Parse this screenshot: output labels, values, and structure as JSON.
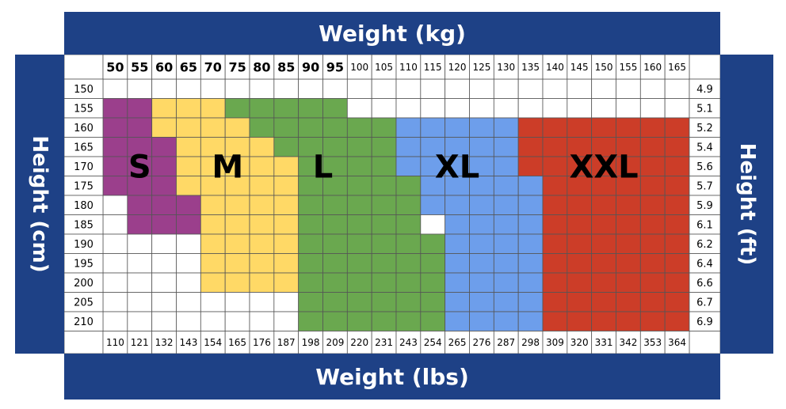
{
  "chart_data": {
    "type": "heatmap",
    "title": "Weight (kg)",
    "xlabel": "Weight (kg)",
    "xlabel_secondary": "Weight (lbs)",
    "ylabel": "Height (cm)",
    "ylabel_secondary": "Height (ft)",
    "weight_kg": [
      "50",
      "55",
      "60",
      "65",
      "70",
      "75",
      "80",
      "85",
      "90",
      "95",
      "100",
      "105",
      "110",
      "115",
      "120",
      "125",
      "130",
      "135",
      "140",
      "145",
      "150",
      "155",
      "160",
      "165"
    ],
    "weight_lbs": [
      "110",
      "121",
      "132",
      "143",
      "154",
      "165",
      "176",
      "187",
      "198",
      "209",
      "220",
      "231",
      "243",
      "254",
      "265",
      "276",
      "287",
      "298",
      "309",
      "320",
      "331",
      "342",
      "353",
      "364"
    ],
    "height_cm": [
      "150",
      "155",
      "160",
      "165",
      "170",
      "175",
      "180",
      "185",
      "190",
      "195",
      "200",
      "205",
      "210"
    ],
    "height_ft": [
      "4.9",
      "5.1",
      "5.2",
      "5.4",
      "5.6",
      "5.7",
      "5.9",
      "6.1",
      "6.2",
      "6.4",
      "6.6",
      "6.7",
      "6.9"
    ],
    "sizes": [
      {
        "name": "S",
        "color": "#9b3f8c",
        "text_color": "#000000",
        "cells": [
          [
            1,
            0
          ],
          [
            1,
            1
          ],
          [
            2,
            0
          ],
          [
            2,
            1
          ],
          [
            3,
            0
          ],
          [
            3,
            1
          ],
          [
            3,
            2
          ],
          [
            4,
            0
          ],
          [
            4,
            1
          ],
          [
            4,
            2
          ],
          [
            5,
            0
          ],
          [
            5,
            1
          ],
          [
            5,
            2
          ],
          [
            6,
            1
          ],
          [
            6,
            2
          ],
          [
            6,
            3
          ],
          [
            7,
            1
          ],
          [
            7,
            2
          ],
          [
            7,
            3
          ]
        ]
      },
      {
        "name": "M",
        "color": "#ffd966",
        "text_color": "#000000",
        "cells": [
          [
            1,
            2
          ],
          [
            1,
            3
          ],
          [
            1,
            4
          ],
          [
            2,
            2
          ],
          [
            2,
            3
          ],
          [
            2,
            4
          ],
          [
            2,
            5
          ],
          [
            3,
            3
          ],
          [
            3,
            4
          ],
          [
            3,
            5
          ],
          [
            3,
            6
          ],
          [
            4,
            3
          ],
          [
            4,
            4
          ],
          [
            4,
            5
          ],
          [
            4,
            6
          ],
          [
            4,
            7
          ],
          [
            5,
            3
          ],
          [
            5,
            4
          ],
          [
            5,
            5
          ],
          [
            5,
            6
          ],
          [
            5,
            7
          ],
          [
            6,
            4
          ],
          [
            6,
            5
          ],
          [
            6,
            6
          ],
          [
            6,
            7
          ],
          [
            7,
            4
          ],
          [
            7,
            5
          ],
          [
            7,
            6
          ],
          [
            7,
            7
          ],
          [
            8,
            4
          ],
          [
            8,
            5
          ],
          [
            8,
            6
          ],
          [
            8,
            7
          ],
          [
            9,
            4
          ],
          [
            9,
            5
          ],
          [
            9,
            6
          ],
          [
            9,
            7
          ],
          [
            10,
            4
          ],
          [
            10,
            5
          ],
          [
            10,
            6
          ],
          [
            10,
            7
          ]
        ]
      },
      {
        "name": "L",
        "color": "#6aa84f",
        "text_color": "#000000",
        "cells": [
          [
            1,
            5
          ],
          [
            1,
            6
          ],
          [
            1,
            7
          ],
          [
            1,
            8
          ],
          [
            1,
            9
          ],
          [
            2,
            6
          ],
          [
            2,
            7
          ],
          [
            2,
            8
          ],
          [
            2,
            9
          ],
          [
            2,
            10
          ],
          [
            2,
            11
          ],
          [
            3,
            7
          ],
          [
            3,
            8
          ],
          [
            3,
            9
          ],
          [
            3,
            10
          ],
          [
            3,
            11
          ],
          [
            4,
            8
          ],
          [
            4,
            9
          ],
          [
            4,
            10
          ],
          [
            4,
            11
          ],
          [
            5,
            8
          ],
          [
            5,
            9
          ],
          [
            5,
            10
          ],
          [
            5,
            11
          ],
          [
            5,
            12
          ],
          [
            6,
            8
          ],
          [
            6,
            9
          ],
          [
            6,
            10
          ],
          [
            6,
            11
          ],
          [
            6,
            12
          ],
          [
            7,
            8
          ],
          [
            7,
            9
          ],
          [
            7,
            10
          ],
          [
            7,
            11
          ],
          [
            7,
            12
          ],
          [
            8,
            8
          ],
          [
            8,
            9
          ],
          [
            8,
            10
          ],
          [
            8,
            11
          ],
          [
            8,
            12
          ],
          [
            8,
            13
          ],
          [
            9,
            8
          ],
          [
            9,
            9
          ],
          [
            9,
            10
          ],
          [
            9,
            11
          ],
          [
            9,
            12
          ],
          [
            9,
            13
          ],
          [
            10,
            8
          ],
          [
            10,
            9
          ],
          [
            10,
            10
          ],
          [
            10,
            11
          ],
          [
            10,
            12
          ],
          [
            10,
            13
          ],
          [
            11,
            8
          ],
          [
            11,
            9
          ],
          [
            11,
            10
          ],
          [
            11,
            11
          ],
          [
            11,
            12
          ],
          [
            11,
            13
          ],
          [
            12,
            8
          ],
          [
            12,
            9
          ],
          [
            12,
            10
          ],
          [
            12,
            11
          ],
          [
            12,
            12
          ],
          [
            12,
            13
          ]
        ]
      },
      {
        "name": "XL",
        "color": "#6d9eeb",
        "text_color": "#000000",
        "cells": [
          [
            2,
            12
          ],
          [
            2,
            13
          ],
          [
            2,
            14
          ],
          [
            2,
            15
          ],
          [
            2,
            16
          ],
          [
            3,
            12
          ],
          [
            3,
            13
          ],
          [
            3,
            14
          ],
          [
            3,
            15
          ],
          [
            3,
            16
          ],
          [
            4,
            12
          ],
          [
            4,
            13
          ],
          [
            4,
            14
          ],
          [
            4,
            15
          ],
          [
            4,
            16
          ],
          [
            5,
            13
          ],
          [
            5,
            14
          ],
          [
            5,
            15
          ],
          [
            5,
            16
          ],
          [
            5,
            17
          ],
          [
            6,
            13
          ],
          [
            6,
            14
          ],
          [
            6,
            15
          ],
          [
            6,
            16
          ],
          [
            6,
            17
          ],
          [
            7,
            14
          ],
          [
            7,
            15
          ],
          [
            7,
            16
          ],
          [
            7,
            17
          ],
          [
            8,
            14
          ],
          [
            8,
            15
          ],
          [
            8,
            16
          ],
          [
            8,
            17
          ],
          [
            9,
            14
          ],
          [
            9,
            15
          ],
          [
            9,
            16
          ],
          [
            9,
            17
          ],
          [
            10,
            14
          ],
          [
            10,
            15
          ],
          [
            10,
            16
          ],
          [
            10,
            17
          ],
          [
            11,
            14
          ],
          [
            11,
            15
          ],
          [
            11,
            16
          ],
          [
            11,
            17
          ],
          [
            12,
            14
          ],
          [
            12,
            15
          ],
          [
            12,
            16
          ],
          [
            12,
            17
          ]
        ]
      },
      {
        "name": "XXL",
        "color": "#cc3d28",
        "text_color": "#000000",
        "cells": [
          [
            2,
            17
          ],
          [
            2,
            18
          ],
          [
            2,
            19
          ],
          [
            2,
            20
          ],
          [
            2,
            21
          ],
          [
            2,
            22
          ],
          [
            2,
            23
          ],
          [
            3,
            17
          ],
          [
            3,
            18
          ],
          [
            3,
            19
          ],
          [
            3,
            20
          ],
          [
            3,
            21
          ],
          [
            3,
            22
          ],
          [
            3,
            23
          ],
          [
            4,
            17
          ],
          [
            4,
            18
          ],
          [
            4,
            19
          ],
          [
            4,
            20
          ],
          [
            4,
            21
          ],
          [
            4,
            22
          ],
          [
            4,
            23
          ],
          [
            5,
            18
          ],
          [
            5,
            19
          ],
          [
            5,
            20
          ],
          [
            5,
            21
          ],
          [
            5,
            22
          ],
          [
            5,
            23
          ],
          [
            6,
            18
          ],
          [
            6,
            19
          ],
          [
            6,
            20
          ],
          [
            6,
            21
          ],
          [
            6,
            22
          ],
          [
            6,
            23
          ],
          [
            7,
            18
          ],
          [
            7,
            19
          ],
          [
            7,
            20
          ],
          [
            7,
            21
          ],
          [
            7,
            22
          ],
          [
            7,
            23
          ],
          [
            8,
            18
          ],
          [
            8,
            19
          ],
          [
            8,
            20
          ],
          [
            8,
            21
          ],
          [
            8,
            22
          ],
          [
            8,
            23
          ],
          [
            9,
            18
          ],
          [
            9,
            19
          ],
          [
            9,
            20
          ],
          [
            9,
            21
          ],
          [
            9,
            22
          ],
          [
            9,
            23
          ],
          [
            10,
            18
          ],
          [
            10,
            19
          ],
          [
            10,
            20
          ],
          [
            10,
            21
          ],
          [
            10,
            22
          ],
          [
            10,
            23
          ],
          [
            11,
            18
          ],
          [
            11,
            19
          ],
          [
            11,
            20
          ],
          [
            11,
            21
          ],
          [
            11,
            22
          ],
          [
            11,
            23
          ],
          [
            12,
            18
          ],
          [
            12,
            19
          ],
          [
            12,
            20
          ],
          [
            12,
            21
          ],
          [
            12,
            22
          ],
          [
            12,
            23
          ]
        ]
      }
    ],
    "colors": {
      "band": "#1e4186",
      "grid_line": "#555555",
      "empty_cell": "#ffffff"
    }
  }
}
